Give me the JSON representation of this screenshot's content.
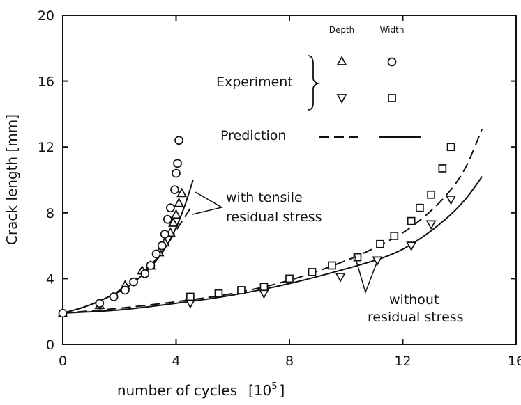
{
  "chart_data": {
    "type": "scatter",
    "xlabel": "number of cycles",
    "xunit_base": "10",
    "xunit_exp": "5",
    "ylabel": "Crack length [mm]",
    "xlim": [
      0,
      16
    ],
    "ylim": [
      0,
      20
    ],
    "x_ticks": [
      "0",
      "4",
      "8",
      "12",
      "16"
    ],
    "y_ticks": [
      "0",
      "4",
      "8",
      "12",
      "16",
      "20"
    ],
    "grid": false,
    "legend": {
      "col_headers": [
        "Depth",
        "Width"
      ],
      "experiment_label": "Experiment",
      "prediction_label": "Prediction"
    },
    "annotations": {
      "with_tensile_line1": "with tensile",
      "with_tensile_line2": "residual stress",
      "without_line1": "without",
      "without_line2": "residual stress"
    },
    "series": [
      {
        "group": "with tensile residual stress",
        "kind": "experiment-depth",
        "marker": "triangle-up",
        "points": [
          [
            0,
            1.9
          ],
          [
            1.3,
            2.4
          ],
          [
            2.2,
            3.6
          ],
          [
            2.8,
            4.5
          ],
          [
            3.1,
            4.8
          ],
          [
            3.4,
            5.6
          ],
          [
            3.6,
            6.2
          ],
          [
            3.8,
            6.8
          ],
          [
            3.9,
            7.4
          ],
          [
            4.0,
            7.9
          ],
          [
            4.1,
            8.6
          ],
          [
            4.2,
            9.2
          ]
        ]
      },
      {
        "group": "with tensile residual stress",
        "kind": "experiment-width",
        "marker": "circle",
        "points": [
          [
            0,
            1.9
          ],
          [
            1.3,
            2.5
          ],
          [
            1.8,
            2.9
          ],
          [
            2.2,
            3.3
          ],
          [
            2.5,
            3.8
          ],
          [
            2.9,
            4.3
          ],
          [
            3.1,
            4.8
          ],
          [
            3.3,
            5.5
          ],
          [
            3.5,
            6.0
          ],
          [
            3.6,
            6.7
          ],
          [
            3.7,
            7.6
          ],
          [
            3.8,
            8.3
          ],
          [
            3.95,
            9.4
          ],
          [
            4.0,
            10.4
          ],
          [
            4.05,
            11.0
          ],
          [
            4.1,
            12.4
          ]
        ]
      },
      {
        "group": "without residual stress",
        "kind": "experiment-depth",
        "marker": "triangle-down",
        "points": [
          [
            4.5,
            2.5
          ],
          [
            7.1,
            3.1
          ],
          [
            9.8,
            4.1
          ],
          [
            11.1,
            5.1
          ],
          [
            12.3,
            6.0
          ],
          [
            13.0,
            7.3
          ],
          [
            13.7,
            8.8
          ]
        ]
      },
      {
        "group": "without residual stress",
        "kind": "experiment-width",
        "marker": "square",
        "points": [
          [
            4.5,
            2.9
          ],
          [
            5.5,
            3.1
          ],
          [
            6.3,
            3.3
          ],
          [
            7.1,
            3.5
          ],
          [
            8.0,
            4.0
          ],
          [
            8.8,
            4.4
          ],
          [
            9.5,
            4.8
          ],
          [
            10.4,
            5.3
          ],
          [
            11.2,
            6.1
          ],
          [
            11.7,
            6.6
          ],
          [
            12.3,
            7.5
          ],
          [
            12.6,
            8.3
          ],
          [
            13.0,
            9.1
          ],
          [
            13.4,
            10.7
          ],
          [
            13.7,
            12.0
          ]
        ]
      },
      {
        "group": "with tensile residual stress",
        "kind": "prediction-depth",
        "line": "dashed",
        "points": [
          [
            0,
            1.9
          ],
          [
            0.8,
            2.3
          ],
          [
            1.5,
            2.8
          ],
          [
            2.2,
            3.5
          ],
          [
            2.8,
            4.3
          ],
          [
            3.3,
            5.2
          ],
          [
            3.7,
            6.1
          ],
          [
            4.1,
            7.2
          ],
          [
            4.4,
            8.0
          ],
          [
            4.55,
            8.4
          ]
        ]
      },
      {
        "group": "with tensile residual stress",
        "kind": "prediction-width",
        "line": "solid",
        "points": [
          [
            0,
            1.9
          ],
          [
            0.8,
            2.3
          ],
          [
            1.5,
            2.8
          ],
          [
            2.2,
            3.4
          ],
          [
            2.8,
            4.2
          ],
          [
            3.3,
            5.1
          ],
          [
            3.7,
            6.1
          ],
          [
            4.0,
            7.1
          ],
          [
            4.3,
            8.4
          ],
          [
            4.6,
            10.0
          ]
        ]
      },
      {
        "group": "without residual stress",
        "kind": "prediction-depth",
        "line": "dashed",
        "points": [
          [
            0,
            1.9
          ],
          [
            2,
            2.2
          ],
          [
            4,
            2.6
          ],
          [
            6,
            3.1
          ],
          [
            8,
            3.9
          ],
          [
            10,
            5.1
          ],
          [
            11.5,
            6.3
          ],
          [
            12.5,
            7.4
          ],
          [
            13.5,
            9.0
          ],
          [
            14.2,
            10.7
          ],
          [
            14.8,
            13.1
          ]
        ]
      },
      {
        "group": "without residual stress",
        "kind": "prediction-width",
        "line": "solid",
        "points": [
          [
            0,
            1.9
          ],
          [
            2,
            2.1
          ],
          [
            4,
            2.5
          ],
          [
            6,
            3.0
          ],
          [
            8,
            3.7
          ],
          [
            10,
            4.6
          ],
          [
            11.5,
            5.4
          ],
          [
            12.5,
            6.3
          ],
          [
            13.5,
            7.6
          ],
          [
            14.2,
            8.8
          ],
          [
            14.8,
            10.2
          ]
        ]
      }
    ]
  }
}
